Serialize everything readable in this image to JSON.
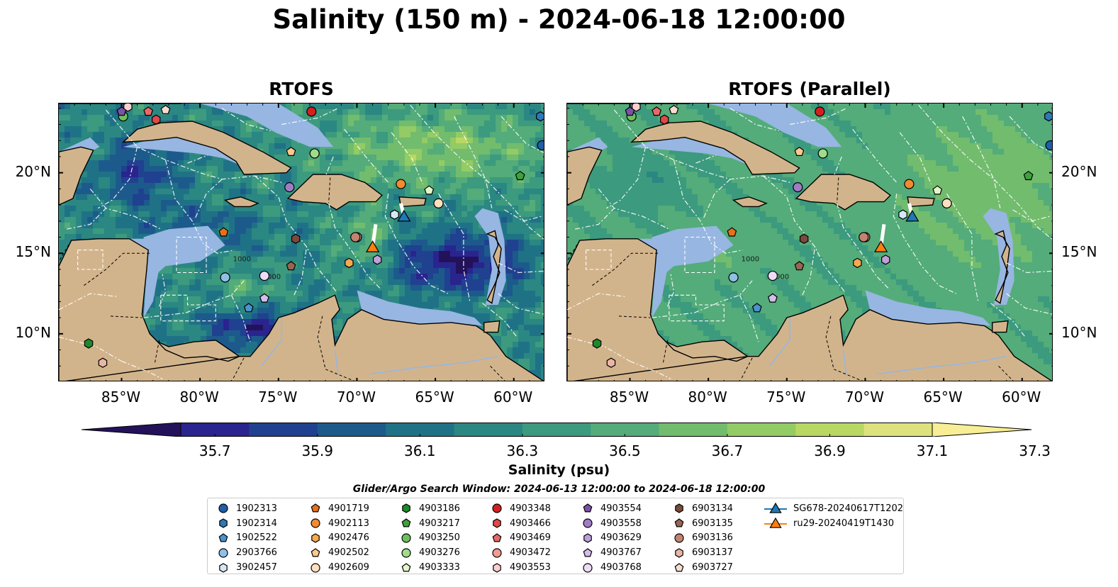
{
  "title": "Salinity (150 m) - 2024-06-18 12:00:00",
  "panels": [
    {
      "title": "RTOFS",
      "variant": "main"
    },
    {
      "title": "RTOFS (Parallel)",
      "variant": "parallel"
    }
  ],
  "axes": {
    "lon_ticks": [
      "85°W",
      "80°W",
      "75°W",
      "70°W",
      "65°W",
      "60°W"
    ],
    "lat_ticks": [
      "20°N",
      "15°N",
      "10°N"
    ],
    "lon_range": [
      -89,
      -58
    ],
    "lat_range": [
      7,
      24.3
    ]
  },
  "contour_labels": [
    "1000",
    "1000"
  ],
  "colorbar": {
    "label": "Salinity (psu)",
    "ticks": [
      "35.7",
      "35.9",
      "36.1",
      "36.3",
      "36.5",
      "36.7",
      "36.9",
      "37.1",
      "37.3"
    ],
    "colors": [
      "#23125a",
      "#2a248f",
      "#20418f",
      "#1d5a8c",
      "#1f7286",
      "#2b8782",
      "#3c9a7e",
      "#53ac79",
      "#72bc6e",
      "#93cb64",
      "#b9d763",
      "#dde27d",
      "#f7ee96"
    ]
  },
  "search_window": "Glider/Argo Search Window: 2024-06-13 12:00:00 to 2024-06-18 12:00:00",
  "legend": [
    {
      "label": "1902313",
      "marker": "circle",
      "color": "#1f5ea8"
    },
    {
      "label": "1902314",
      "marker": "hexagon",
      "color": "#2e78b8"
    },
    {
      "label": "1902522",
      "marker": "pentagon",
      "color": "#4a93cc"
    },
    {
      "label": "2903766",
      "marker": "circle",
      "color": "#8fc0e6"
    },
    {
      "label": "3902457",
      "marker": "hexagon",
      "color": "#d6e8f6"
    },
    {
      "label": "4901719",
      "marker": "pentagon",
      "color": "#e8701a"
    },
    {
      "label": "4902113",
      "marker": "circle",
      "color": "#f28b30"
    },
    {
      "label": "4902476",
      "marker": "hexagon",
      "color": "#f7a94f"
    },
    {
      "label": "4902502",
      "marker": "pentagon",
      "color": "#fbc98f"
    },
    {
      "label": "4902609",
      "marker": "circle",
      "color": "#fde0c0"
    },
    {
      "label": "4903186",
      "marker": "hexagon",
      "color": "#1c8a2a"
    },
    {
      "label": "4903217",
      "marker": "pentagon",
      "color": "#3ea23c"
    },
    {
      "label": "4903250",
      "marker": "circle",
      "color": "#6cc05c"
    },
    {
      "label": "4903276",
      "marker": "circle",
      "color": "#9fdc8a"
    },
    {
      "label": "4903333",
      "marker": "pentagon",
      "color": "#e2f7c8"
    },
    {
      "label": "4903348",
      "marker": "circle",
      "color": "#d42020"
    },
    {
      "label": "4903466",
      "marker": "hexagon",
      "color": "#e04848"
    },
    {
      "label": "4903469",
      "marker": "pentagon",
      "color": "#ea6868"
    },
    {
      "label": "4903472",
      "marker": "circle",
      "color": "#f29a94"
    },
    {
      "label": "4903553",
      "marker": "hexagon",
      "color": "#fbd0d0"
    },
    {
      "label": "4903554",
      "marker": "pentagon",
      "color": "#7b52a8"
    },
    {
      "label": "4903558",
      "marker": "circle",
      "color": "#a07cc6"
    },
    {
      "label": "4903629",
      "marker": "hexagon",
      "color": "#bea0dc"
    },
    {
      "label": "4903767",
      "marker": "pentagon",
      "color": "#d4bcec"
    },
    {
      "label": "4903768",
      "marker": "circle",
      "color": "#ecdcf8"
    },
    {
      "label": "6903134",
      "marker": "hexagon",
      "color": "#7a4a3c"
    },
    {
      "label": "6903135",
      "marker": "pentagon",
      "color": "#9a6452"
    },
    {
      "label": "6903136",
      "marker": "circle",
      "color": "#c08470"
    },
    {
      "label": "6903137",
      "marker": "hexagon",
      "color": "#eab6a4"
    },
    {
      "label": "6903727",
      "marker": "pentagon",
      "color": "#f8dcd0"
    },
    {
      "label": "SG678-20240617T1202",
      "marker": "triangle-line",
      "color": "#1f77b4"
    },
    {
      "label": "ru29-20240419T1430",
      "marker": "triangle-line",
      "color": "#ff7f0e"
    }
  ],
  "floats": [
    {
      "id": "1902313",
      "lon": -58.2,
      "lat": 21.7
    },
    {
      "id": "1902314",
      "lon": -58.3,
      "lat": 23.5
    },
    {
      "id": "1902522",
      "lon": -76.9,
      "lat": 11.6
    },
    {
      "id": "2903766",
      "lon": -78.4,
      "lat": 13.5
    },
    {
      "id": "3902457",
      "lon": -67.6,
      "lat": 17.4
    },
    {
      "id": "4901719",
      "lon": -78.5,
      "lat": 16.3
    },
    {
      "id": "4902113",
      "lon": -67.2,
      "lat": 19.3
    },
    {
      "id": "4902476",
      "lon": -70.5,
      "lat": 14.4
    },
    {
      "id": "4902502",
      "lon": -74.2,
      "lat": 21.3
    },
    {
      "id": "4902609",
      "lon": -64.8,
      "lat": 18.1
    },
    {
      "id": "4903186",
      "lon": -87.1,
      "lat": 9.4
    },
    {
      "id": "4903217",
      "lon": -59.6,
      "lat": 19.8
    },
    {
      "id": "4903250",
      "lon": -84.9,
      "lat": 23.5
    },
    {
      "id": "4903276",
      "lon": -72.7,
      "lat": 21.2
    },
    {
      "id": "4903333",
      "lon": -65.4,
      "lat": 18.9
    },
    {
      "id": "4903348",
      "lon": -72.9,
      "lat": 23.8
    },
    {
      "id": "4903466",
      "lon": -82.8,
      "lat": 23.3
    },
    {
      "id": "4903469",
      "lon": -83.3,
      "lat": 23.8
    },
    {
      "id": "4903472",
      "lon": -70.0,
      "lat": 16.0
    },
    {
      "id": "4903553",
      "lon": -84.6,
      "lat": 24.1
    },
    {
      "id": "4903554",
      "lon": -85.0,
      "lat": 23.8
    },
    {
      "id": "4903558",
      "lon": -74.3,
      "lat": 19.1
    },
    {
      "id": "4903629",
      "lon": -68.7,
      "lat": 14.6
    },
    {
      "id": "4903767",
      "lon": -75.9,
      "lat": 12.2
    },
    {
      "id": "4903768",
      "lon": -75.9,
      "lat": 13.6
    },
    {
      "id": "6903134",
      "lon": -73.9,
      "lat": 15.9
    },
    {
      "id": "6903135",
      "lon": -74.2,
      "lat": 14.2
    },
    {
      "id": "6903136",
      "lon": -70.1,
      "lat": 16.0
    },
    {
      "id": "6903137",
      "lon": -86.2,
      "lat": 8.2
    },
    {
      "id": "6903727",
      "lon": -82.2,
      "lat": 23.9
    }
  ],
  "gliders": [
    {
      "id": "SG678-20240617T1202",
      "lon": -67.0,
      "lat": 17.3,
      "track": [
        [
          -67.2,
          18.1
        ],
        [
          -67.0,
          17.3
        ]
      ]
    },
    {
      "id": "ru29-20240419T1430",
      "lon": -69.0,
      "lat": 15.4,
      "track": [
        [
          -68.8,
          16.8
        ],
        [
          -69.0,
          15.4
        ]
      ]
    }
  ]
}
